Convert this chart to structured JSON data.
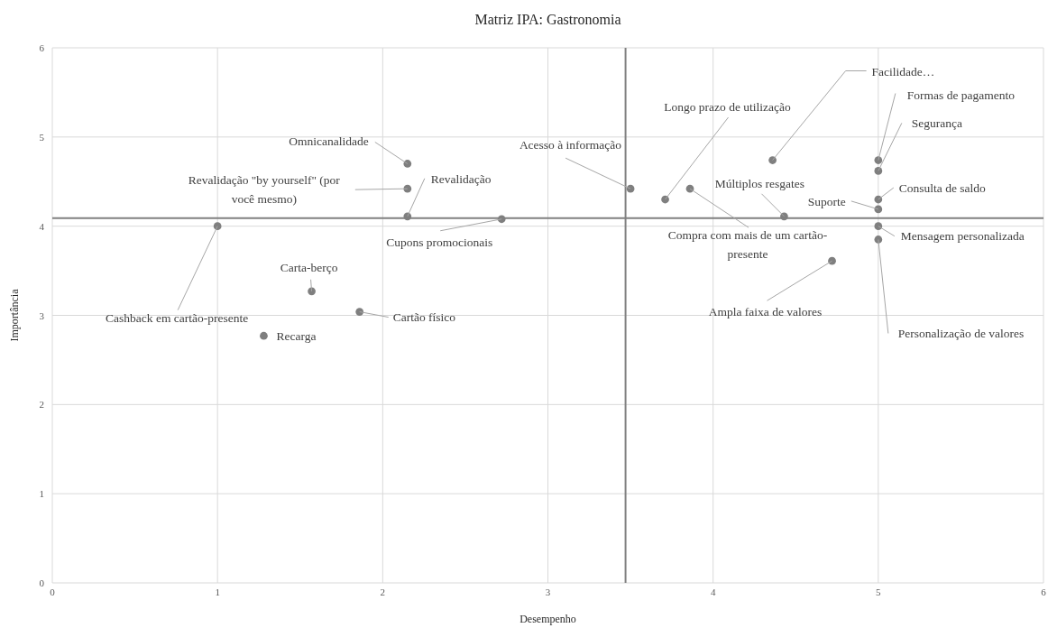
{
  "chart_data": {
    "type": "scatter",
    "title": "Matriz IPA: Gastronomia",
    "xlabel": "Desempenho",
    "ylabel": "Importância",
    "x": [
      1,
      1.57,
      1.86,
      1.28,
      2.15,
      2.15,
      2.15,
      2.72,
      3.5,
      3.71,
      3.86,
      4.43,
      4.36,
      5,
      5,
      5,
      5,
      5,
      5,
      4.72
    ],
    "series": [
      {
        "color": "#7f7f7f",
        "values": [
          4.0,
          3.27,
          3.04,
          2.77,
          4.7,
          4.42,
          4.11,
          4.08,
          4.42,
          4.3,
          4.42,
          4.11,
          4.74,
          4.74,
          4.62,
          4.3,
          4.19,
          4.0,
          3.85,
          3.61
        ]
      }
    ],
    "xlim": [
      0,
      6
    ],
    "ylim": [
      0,
      6
    ],
    "xticks": [
      0,
      1,
      2,
      3,
      4,
      5,
      6
    ],
    "yticks": [
      0,
      1,
      2,
      3,
      4,
      5,
      6
    ],
    "grid": true,
    "marker": "circle",
    "ref_lines": [
      {
        "axis": "x",
        "value": 3.47,
        "color": "#808080"
      },
      {
        "axis": "y",
        "value": 4.09,
        "color": "#808080"
      }
    ],
    "annotations": [
      {
        "text": "Cashback em cartão-presente",
        "x": 1,
        "y": 4.0
      },
      {
        "text": "Carta-berço",
        "x": 1.57,
        "y": 3.27
      },
      {
        "text": "Cartão físico",
        "x": 1.86,
        "y": 3.04
      },
      {
        "text": "Recarga",
        "x": 1.28,
        "y": 2.77
      },
      {
        "text": "Omnicanalidade",
        "x": 2.15,
        "y": 4.7
      },
      {
        "text": "Revalidação \"by yourself\" (por você mesmo)",
        "x": 2.15,
        "y": 4.42
      },
      {
        "text": "Revalidação",
        "x": 2.15,
        "y": 4.11
      },
      {
        "text": "Cupons promocionais",
        "x": 2.72,
        "y": 4.08
      },
      {
        "text": "Acesso à informação",
        "x": 3.5,
        "y": 4.42
      },
      {
        "text": "Longo  prazo de utilização",
        "x": 3.71,
        "y": 4.3
      },
      {
        "text": "Compra com mais de um cartão-presente",
        "x": 3.86,
        "y": 4.42
      },
      {
        "text": "Múltiplos resgates",
        "x": 4.43,
        "y": 4.11
      },
      {
        "text": "Facilidade…",
        "x": 4.36,
        "y": 4.74
      },
      {
        "text": "Formas de pagamento",
        "x": 5,
        "y": 4.74
      },
      {
        "text": "Segurança",
        "x": 5,
        "y": 4.62
      },
      {
        "text": "Consulta de saldo",
        "x": 5,
        "y": 4.3
      },
      {
        "text": "Suporte",
        "x": 5,
        "y": 4.19
      },
      {
        "text": "Mensagem personalizada",
        "x": 5,
        "y": 4.0
      },
      {
        "text": "Personalização de valores",
        "x": 5,
        "y": 3.85
      },
      {
        "text": "Ampla faixa de valores",
        "x": 4.72,
        "y": 3.61
      }
    ]
  }
}
